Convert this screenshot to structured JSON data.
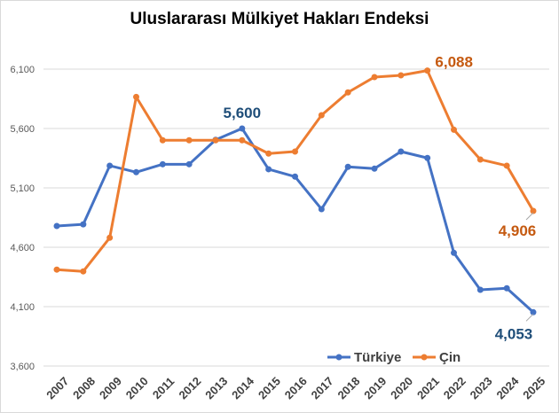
{
  "chart_data": {
    "type": "line",
    "title": "Uluslararası  Mülkiyet Hakları  Endeksi",
    "xlabel": "",
    "ylabel": "",
    "x": [
      "2007",
      "2008",
      "2009",
      "2010",
      "2011",
      "2012",
      "2013",
      "2014",
      "2015",
      "2016",
      "2017",
      "2018",
      "2019",
      "2020",
      "2021",
      "2022",
      "2023",
      "2024",
      "2025"
    ],
    "ylim": [
      3600,
      6100
    ],
    "yticks": [
      "3,600",
      "4,100",
      "4,600",
      "5,100",
      "5,600",
      "6,100"
    ],
    "grid": true,
    "legend_position": "bottom-right",
    "series": [
      {
        "name": "Türkiye",
        "color": "#4472c4",
        "values": [
          4779,
          4793,
          5287,
          5232,
          5299,
          5299,
          5505,
          5600,
          5257,
          5195,
          4921,
          5277,
          5262,
          5406,
          5352,
          4553,
          4242,
          4255,
          4053
        ]
      },
      {
        "name": "Çin",
        "color": "#ed7d31",
        "values": [
          4412,
          4397,
          4680,
          5866,
          5501,
          5501,
          5501,
          5501,
          5389,
          5406,
          5712,
          5904,
          6033,
          6048,
          6088,
          5590,
          5339,
          5287,
          4906
        ]
      }
    ],
    "annotations": [
      {
        "series": "Türkiye",
        "x": "2014",
        "text": "5,600",
        "color": "#1f4e79"
      },
      {
        "series": "Türkiye",
        "x": "2025",
        "text": "4,053",
        "color": "#1f4e79"
      },
      {
        "series": "Çin",
        "x": "2021",
        "text": "6,088",
        "color": "#c55a11"
      },
      {
        "series": "Çin",
        "x": "2025",
        "text": "4,906",
        "color": "#c55a11"
      }
    ]
  }
}
